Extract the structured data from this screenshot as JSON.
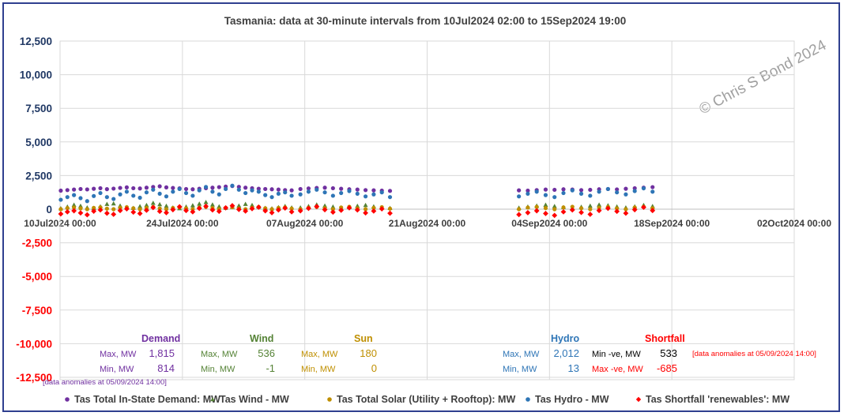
{
  "chart_data": {
    "type": "scatter",
    "title": "Tasmania:  data at 30-minute intervals from 10Jul2024 02:00 to 15Sep2024 19:00",
    "watermark": "© Chris S Bond  2024",
    "y_ticks": [
      {
        "value": 12500,
        "label": "12,500"
      },
      {
        "value": 10000,
        "label": "10,000"
      },
      {
        "value": 7500,
        "label": "7,500"
      },
      {
        "value": 5000,
        "label": "5,000"
      },
      {
        "value": 2500,
        "label": "2,500"
      },
      {
        "value": 0,
        "label": "0"
      },
      {
        "value": -2500,
        "label": "-2,500"
      },
      {
        "value": -5000,
        "label": "-5,000"
      },
      {
        "value": -7500,
        "label": "-7,500"
      },
      {
        "value": -10000,
        "label": "-10,000"
      },
      {
        "value": -12500,
        "label": "-12,500"
      }
    ],
    "ylim": [
      -12500,
      12500
    ],
    "x_ticks": [
      "10Jul2024 00:00",
      "24Jul2024 00:00",
      "07Aug2024 00:00",
      "21Aug2024 00:00",
      "04Sep2024 00:00",
      "18Sep2024 00:00",
      "02Oct2024 00:00"
    ],
    "xlim": [
      "10Jul2024 00:00",
      "02Oct2024 00:00"
    ],
    "grid": true,
    "series": [
      {
        "name": "Tas Total In-State Demand: MW",
        "color": "#7030a0",
        "marker": "circle",
        "segments": [
          {
            "start": "10Jul2024 02:00",
            "end": "05Aug2024 12:00",
            "values": [
              1380,
              1420,
              1460,
              1500,
              1470,
              1520,
              1560,
              1490,
              1530,
              1580,
              1620,
              1560,
              1540,
              1600,
              1650,
              1700,
              1620,
              1580,
              1550,
              1500,
              1480,
              1520,
              1560,
              1600,
              1640,
              1680,
              1720,
              1660,
              1600,
              1560,
              1520,
              1500,
              1480,
              1460,
              1420,
              1400
            ]
          },
          {
            "start": "06Aug2024 12:00",
            "end": "16Aug2024 18:00",
            "values": [
              1500,
              1540,
              1580,
              1600,
              1560,
              1520,
              1480,
              1460,
              1420,
              1400,
              1380,
              1360
            ]
          },
          {
            "start": "31Aug2024 12:00",
            "end": "15Sep2024 19:00",
            "values": [
              1400,
              1380,
              1420,
              1460,
              1440,
              1480,
              1460,
              1420,
              1440,
              1480,
              1500,
              1470,
              1520,
              1560,
              1600,
              1640
            ]
          }
        ]
      },
      {
        "name": "Tas Wind -  MW",
        "color": "#548235",
        "marker": "triangle",
        "segments": [
          {
            "start": "10Jul2024 02:00",
            "end": "05Aug2024 12:00",
            "values": [
              60,
              180,
              320,
              240,
              120,
              80,
              200,
              380,
              420,
              260,
              150,
              90,
              210,
              300,
              460,
              360,
              240,
              120,
              60,
              180,
              280,
              400,
              520,
              340,
              200,
              100,
              160,
              260,
              380,
              300,
              180,
              90,
              50,
              140,
              230,
              120
            ]
          },
          {
            "start": "06Aug2024 12:00",
            "end": "16Aug2024 18:00",
            "values": [
              120,
              220,
              340,
              260,
              180,
              100,
              160,
              240,
              300,
              200,
              120,
              80
            ]
          },
          {
            "start": "31Aug2024 12:00",
            "end": "15Sep2024 19:00",
            "values": [
              100,
              180,
              260,
              320,
              220,
              140,
              90,
              170,
              250,
              330,
              280,
              190,
              120,
              200,
              300,
              220
            ]
          }
        ]
      },
      {
        "name": "Tas Total Solar (Utility + Rooftop): MW",
        "color": "#bf8f00",
        "marker": "circle",
        "segments": [
          {
            "start": "10Jul2024 02:00",
            "end": "05Aug2024 12:00",
            "values": [
              0,
              80,
              120,
              60,
              0,
              95,
              140,
              40,
              0,
              110,
              150,
              70,
              0,
              100,
              160,
              50,
              0,
              90,
              130,
              60,
              0,
              120,
              170,
              80,
              0,
              105,
              145,
              55,
              0,
              115,
              160,
              70,
              0,
              95,
              135,
              45
            ]
          },
          {
            "start": "06Aug2024 12:00",
            "end": "16Aug2024 18:00",
            "values": [
              0,
              110,
              165,
              75,
              0,
              125,
              175,
              60,
              0,
              100,
              150,
              40
            ]
          },
          {
            "start": "31Aug2024 12:00",
            "end": "15Sep2024 19:00",
            "values": [
              0,
              120,
              170,
              80,
              0,
              130,
              180,
              70,
              0,
              115,
              160,
              60,
              0,
              125,
              175,
              65
            ]
          }
        ]
      },
      {
        "name": "Tas Hydro -  MW",
        "color": "#2e75b6",
        "marker": "circle",
        "segments": [
          {
            "start": "10Jul2024 02:00",
            "end": "05Aug2024 12:00",
            "values": [
              700,
              900,
              1050,
              820,
              600,
              980,
              1200,
              900,
              760,
              1100,
              1300,
              1000,
              850,
              1250,
              1450,
              1150,
              950,
              1300,
              1500,
              1200,
              1000,
              1400,
              1650,
              1300,
              1100,
              1500,
              1750,
              1450,
              1200,
              1400,
              1300,
              1050,
              900,
              1150,
              1250,
              1000
            ]
          },
          {
            "start": "06Aug2024 12:00",
            "end": "16Aug2024 18:00",
            "values": [
              1100,
              1300,
              1450,
              1250,
              1000,
              1200,
              1350,
              1150,
              950,
              1100,
              1250,
              900
            ]
          },
          {
            "start": "31Aug2024 12:00",
            "end": "15Sep2024 19:00",
            "values": [
              950,
              1150,
              1300,
              1050,
              900,
              1200,
              1400,
              1150,
              1000,
              1300,
              1500,
              1250,
              1100,
              1350,
              1550,
              1300
            ]
          }
        ]
      },
      {
        "name": "Tas Shortfall 'renewables': MW",
        "color": "#ff0000",
        "marker": "diamond",
        "segments": [
          {
            "start": "10Jul2024 02:00",
            "end": "05Aug2024 12:00",
            "values": [
              -350,
              -200,
              -120,
              -280,
              -420,
              -150,
              -60,
              -300,
              -380,
              -100,
              20,
              -220,
              -320,
              -80,
              120,
              -160,
              -260,
              -40,
              180,
              -100,
              -200,
              60,
              220,
              -60,
              -160,
              100,
              260,
              -20,
              -140,
              40,
              150,
              -120,
              -260,
              -60,
              80,
              -200
            ]
          },
          {
            "start": "06Aug2024 12:00",
            "end": "16Aug2024 18:00",
            "values": [
              -120,
              60,
              200,
              -40,
              -220,
              -80,
              100,
              -60,
              -280,
              -140,
              20,
              -300
            ]
          },
          {
            "start": "31Aug2024 12:00",
            "end": "15Sep2024 19:00",
            "values": [
              -400,
              -260,
              -120,
              -320,
              -460,
              -200,
              -60,
              -240,
              -380,
              -100,
              60,
              -160,
              -300,
              -40,
              140,
              -100
            ]
          }
        ]
      }
    ],
    "stats": {
      "demand": {
        "header": "Demand",
        "max_label": "Max, MW",
        "max": "1,815",
        "min_label": "Min, MW",
        "min": "814"
      },
      "wind": {
        "header": "Wind",
        "max_label": "Max, MW",
        "max": "536",
        "min_label": "Min, MW",
        "min": "-1"
      },
      "sun": {
        "header": "Sun",
        "max_label": "Max, MW",
        "max": "180",
        "min_label": "Min, MW",
        "min": "0"
      },
      "hydro": {
        "header": "Hydro",
        "max_label": "Max, MW",
        "max": "2,012",
        "min_label": "Min, MW",
        "min": "13"
      },
      "shortfall": {
        "header": "Shortfall",
        "max_label": "Min -ve, MW",
        "max": "533",
        "min_label": "Max -ve, MW",
        "min": "-685"
      }
    },
    "anomaly_note_right": "[data anomalies at 05/09/2024 14:00]",
    "anomaly_note_bottom": "[data anomalies at 05/09/2024 14:00]",
    "legend_position": "bottom"
  }
}
